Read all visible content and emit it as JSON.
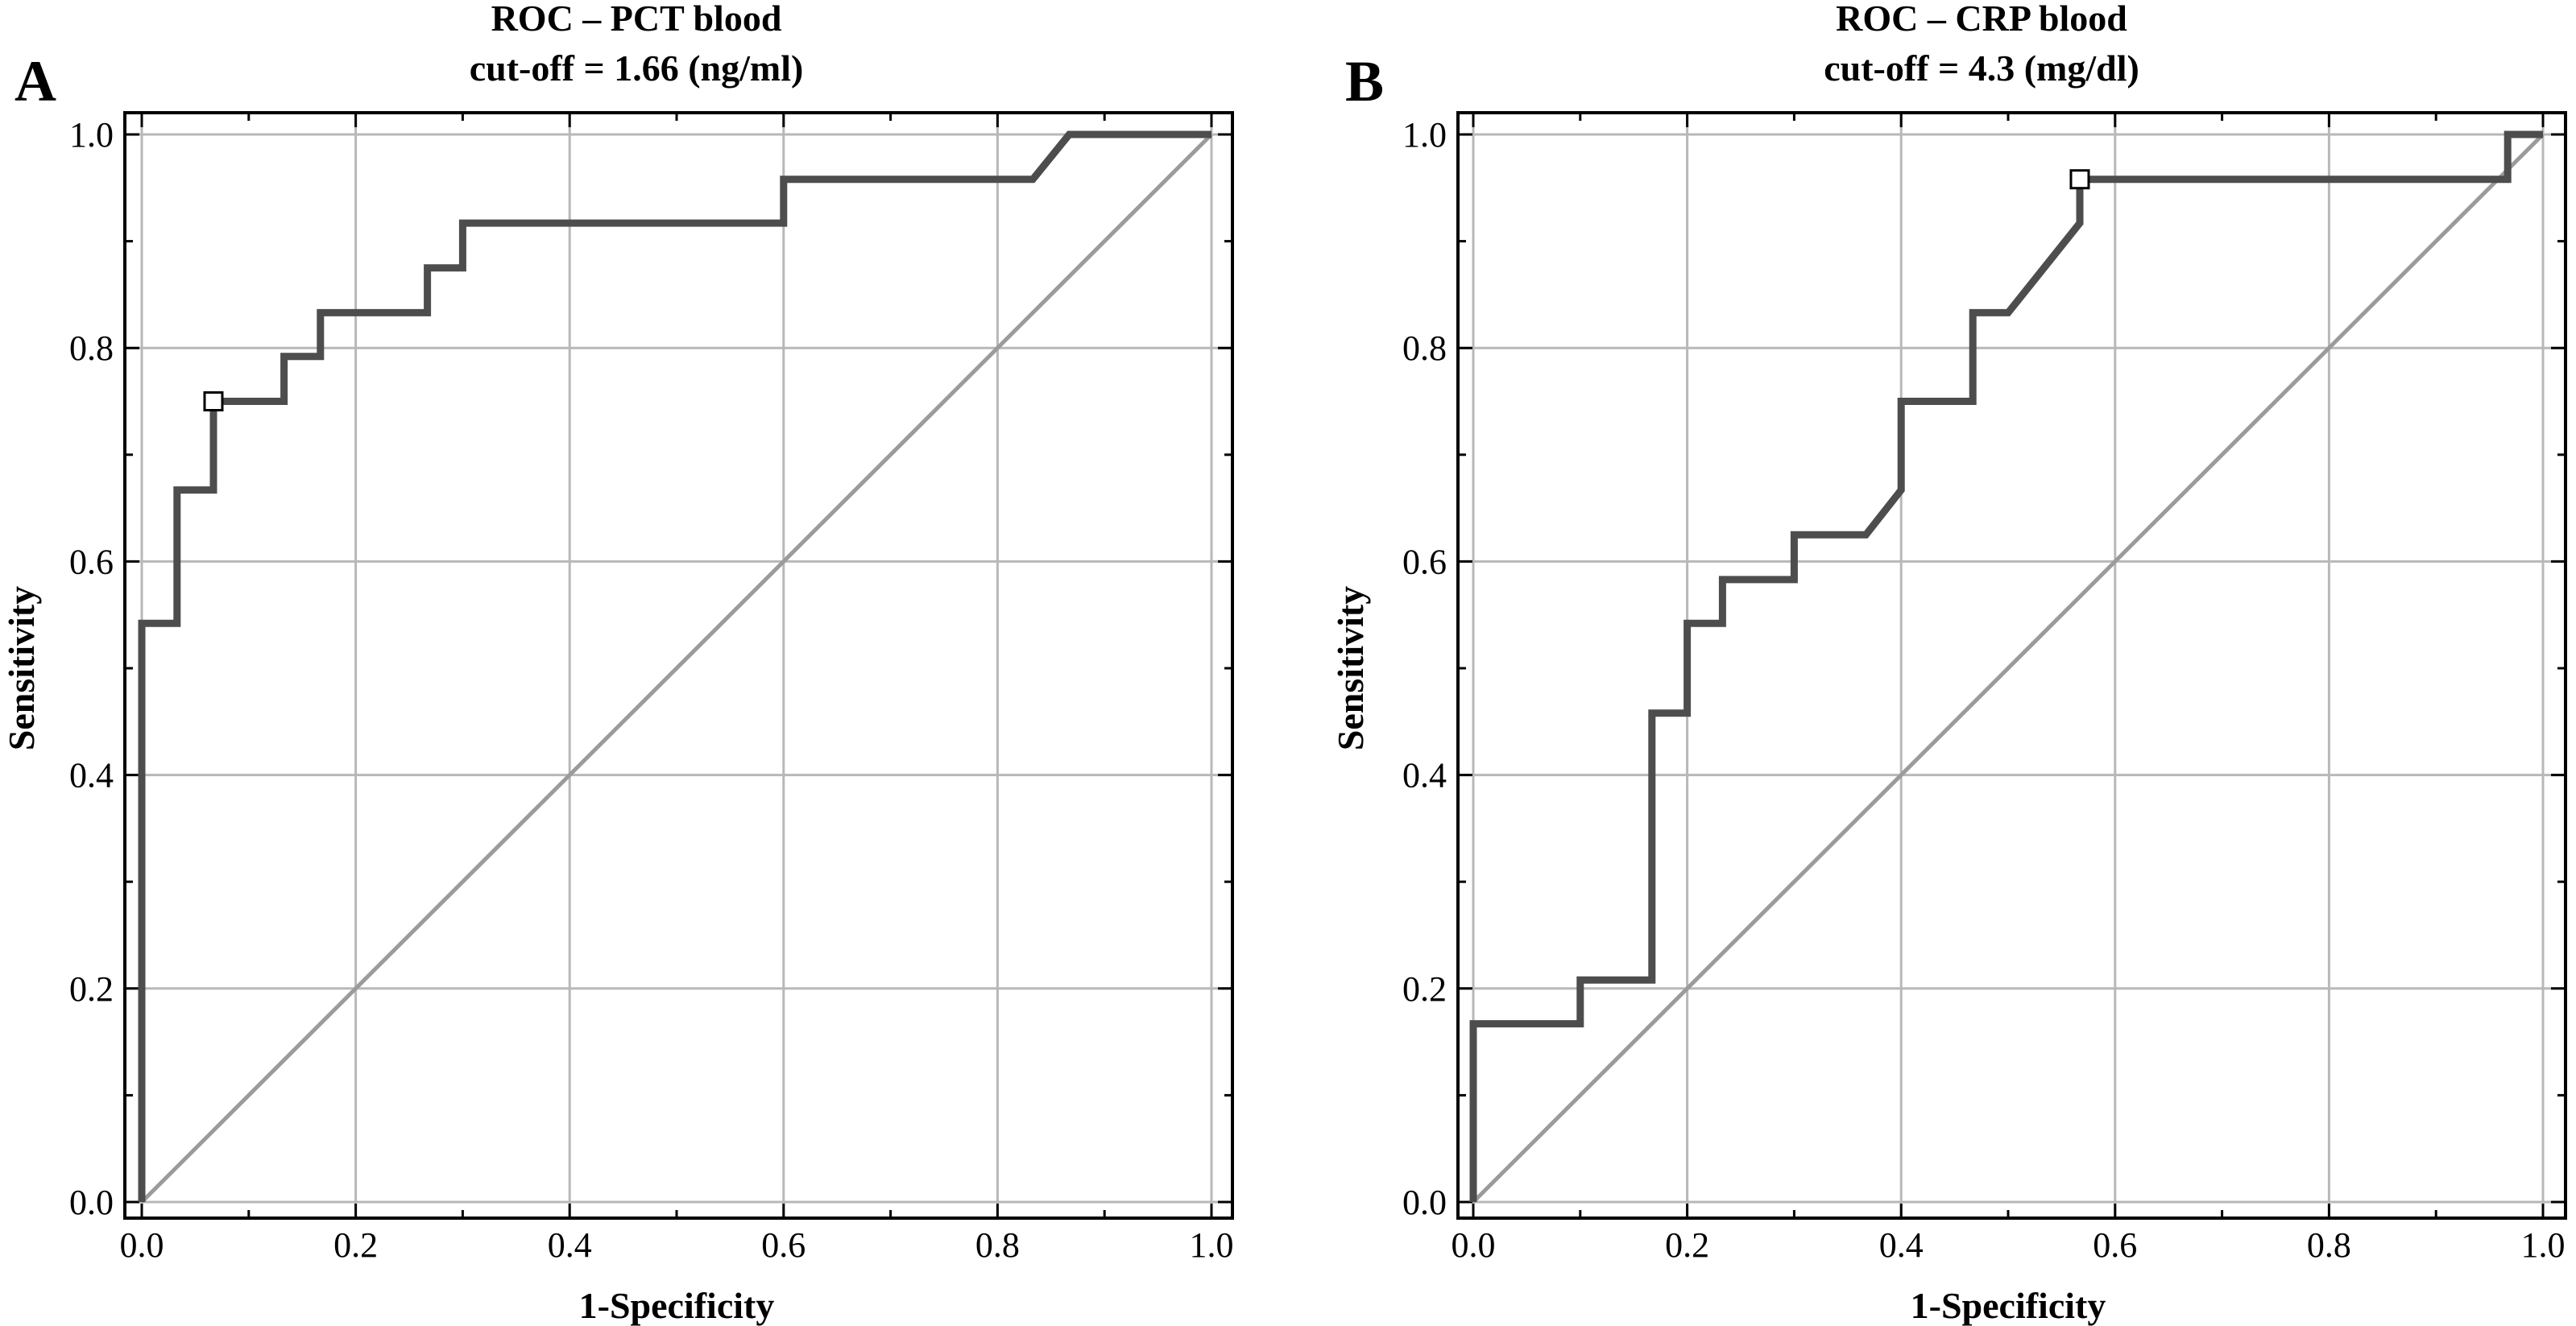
{
  "chart_data": [
    {
      "type": "line",
      "panel": "A",
      "title": "ROC – PCT blood",
      "subtitle": "cut-off = 1.66 (ng/ml)",
      "xlabel": "1-Specificity",
      "ylabel": "Sensitivity",
      "xlim": [
        0,
        1
      ],
      "ylim": [
        0,
        1
      ],
      "xticks": [
        "0.0",
        "0.2",
        "0.4",
        "0.6",
        "0.8",
        "1.0"
      ],
      "yticks": [
        "0.0",
        "0.2",
        "0.4",
        "0.6",
        "0.8",
        "1.0"
      ],
      "grid": true,
      "series": [
        {
          "name": "ROC curve",
          "x": [
            0,
            0,
            0.033,
            0.033,
            0.067,
            0.067,
            0.133,
            0.133,
            0.167,
            0.167,
            0.267,
            0.267,
            0.3,
            0.3,
            0.6,
            0.6,
            0.833,
            0.867,
            1.0
          ],
          "y": [
            0,
            0.542,
            0.542,
            0.667,
            0.667,
            0.75,
            0.75,
            0.792,
            0.792,
            0.833,
            0.833,
            0.875,
            0.875,
            0.917,
            0.917,
            0.958,
            0.958,
            1.0,
            1.0
          ],
          "color": "#4d4d4d"
        },
        {
          "name": "Reference line",
          "x": [
            0,
            1
          ],
          "y": [
            0,
            1
          ],
          "color": "#9b9b9b"
        }
      ],
      "cutoff_point": {
        "x": 0.067,
        "y": 0.75
      }
    },
    {
      "type": "line",
      "panel": "B",
      "title": "ROC – CRP blood",
      "subtitle": "cut-off = 4.3 (mg/dl)",
      "xlabel": "1-Specificity",
      "ylabel": "Sensitivity",
      "xlim": [
        0,
        1
      ],
      "ylim": [
        0,
        1
      ],
      "xticks": [
        "0.0",
        "0.2",
        "0.4",
        "0.6",
        "0.8",
        "1.0"
      ],
      "yticks": [
        "0.0",
        "0.2",
        "0.4",
        "0.6",
        "0.8",
        "1.0"
      ],
      "grid": true,
      "series": [
        {
          "name": "ROC curve",
          "x": [
            0,
            0,
            0.1,
            0.1,
            0.167,
            0.167,
            0.2,
            0.2,
            0.233,
            0.233,
            0.3,
            0.3,
            0.367,
            0.4,
            0.4,
            0.467,
            0.467,
            0.5,
            0.567,
            0.567,
            0.967,
            0.967,
            1.0
          ],
          "y": [
            0,
            0.167,
            0.167,
            0.208,
            0.208,
            0.458,
            0.458,
            0.542,
            0.542,
            0.583,
            0.583,
            0.625,
            0.625,
            0.667,
            0.75,
            0.75,
            0.833,
            0.833,
            0.917,
            0.958,
            0.958,
            1.0,
            1.0
          ],
          "color": "#4d4d4d"
        },
        {
          "name": "Reference line",
          "x": [
            0,
            1
          ],
          "y": [
            0,
            1
          ],
          "color": "#9b9b9b"
        }
      ],
      "cutoff_point": {
        "x": 0.567,
        "y": 0.958
      }
    }
  ]
}
